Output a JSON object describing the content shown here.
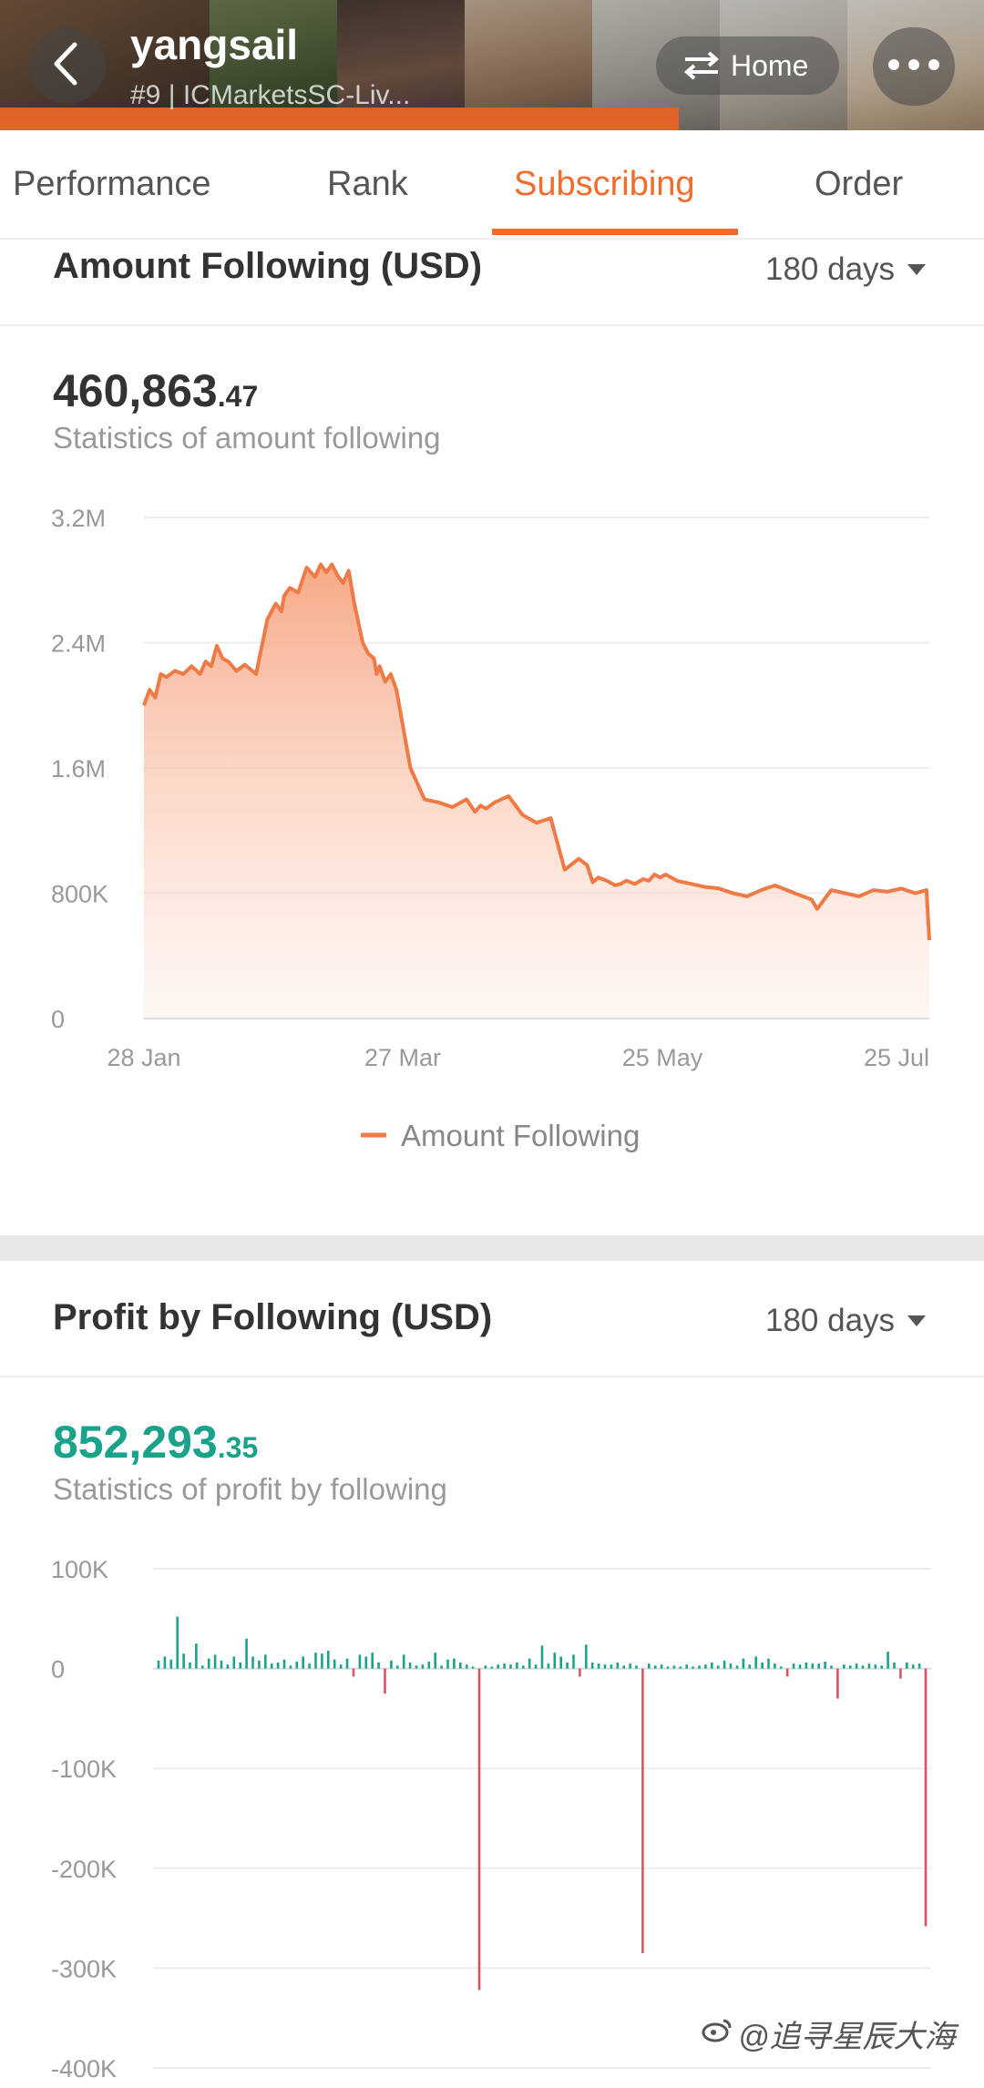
{
  "header": {
    "trader_name": "yangsail",
    "subtitle": "#9 | ICMarketsSC-Liv...",
    "home_label": "Home"
  },
  "tabs": [
    {
      "label": "Performance"
    },
    {
      "label": "Rank"
    },
    {
      "label": "Subscribing",
      "active": true
    },
    {
      "label": "Order"
    }
  ],
  "amount_section": {
    "title": "Amount Following (USD)",
    "period": "180 days",
    "value_int": "460,863",
    "value_dec": ".47",
    "stat_label": "Statistics of amount following",
    "legend": "Amount Following"
  },
  "profit_section": {
    "title": "Profit by Following (USD)",
    "period": "180 days",
    "value_int": "852,293",
    "value_dec": ".35",
    "stat_label": "Statistics of profit by following"
  },
  "watermark": "@追寻星辰大海",
  "colors": {
    "accent": "#f26b2a",
    "line": "#ef7a45",
    "positive": "#1aa38a",
    "negative": "#d9545f"
  },
  "chart_data": [
    {
      "type": "area",
      "series_name": "Amount Following",
      "y_ticks": [
        "3.2M",
        "2.4M",
        "1.6M",
        "800K",
        "0"
      ],
      "x_ticks": [
        "28 Jan",
        "27 Mar",
        "25 May",
        "25 Jul"
      ],
      "ylim": [
        0,
        3200000
      ],
      "x_days": [
        0,
        2,
        4,
        6,
        8,
        11,
        14,
        17,
        20,
        22,
        24,
        26,
        28,
        30,
        33,
        36,
        40,
        44,
        47,
        49,
        50,
        52,
        55,
        58,
        61,
        63,
        65,
        67,
        69,
        71,
        73,
        75,
        78,
        80,
        82,
        83,
        84,
        86,
        88,
        90,
        95,
        100,
        105,
        110,
        115,
        118,
        120,
        122,
        125,
        130,
        135,
        140,
        145,
        150,
        155,
        158,
        160,
        162,
        165,
        168,
        170,
        172,
        175,
        178,
        180,
        182,
        184,
        186,
        190,
        195,
        200,
        205,
        210,
        215,
        220,
        225,
        232,
        238,
        240,
        245,
        250,
        255,
        260,
        265,
        270,
        275,
        279,
        280
      ],
      "values": [
        2000000,
        2100000,
        2050000,
        2200000,
        2180000,
        2220000,
        2200000,
        2250000,
        2200000,
        2280000,
        2250000,
        2380000,
        2300000,
        2280000,
        2220000,
        2260000,
        2200000,
        2550000,
        2650000,
        2600000,
        2700000,
        2750000,
        2720000,
        2880000,
        2820000,
        2900000,
        2850000,
        2900000,
        2830000,
        2780000,
        2860000,
        2650000,
        2400000,
        2330000,
        2300000,
        2200000,
        2250000,
        2150000,
        2200000,
        2100000,
        1600000,
        1400000,
        1380000,
        1350000,
        1400000,
        1320000,
        1360000,
        1340000,
        1380000,
        1420000,
        1300000,
        1250000,
        1280000,
        950000,
        1020000,
        980000,
        870000,
        900000,
        880000,
        850000,
        860000,
        880000,
        860000,
        890000,
        880000,
        920000,
        900000,
        920000,
        880000,
        860000,
        840000,
        830000,
        800000,
        780000,
        820000,
        850000,
        800000,
        760000,
        700000,
        820000,
        800000,
        780000,
        820000,
        810000,
        830000,
        800000,
        820000,
        500000
      ]
    },
    {
      "type": "bar",
      "y_ticks": [
        "100K",
        "0",
        "-100K",
        "-200K",
        "-300K",
        "-400K"
      ],
      "ylim": [
        -400000,
        100000
      ],
      "values": [
        8000,
        12000,
        9000,
        52000,
        15000,
        6000,
        25000,
        3000,
        10000,
        14000,
        8000,
        4000,
        12000,
        6000,
        30000,
        12000,
        8000,
        14000,
        5000,
        6000,
        9000,
        3000,
        7000,
        12000,
        5000,
        16000,
        15000,
        18000,
        9000,
        4000,
        10000,
        -8000,
        14000,
        12000,
        16000,
        6000,
        -25000,
        8000,
        3000,
        14000,
        6000,
        3000,
        4000,
        7000,
        16000,
        3000,
        9000,
        10000,
        6000,
        4000,
        2000,
        -322000,
        3000,
        2000,
        4000,
        5000,
        4000,
        6000,
        3000,
        10000,
        4000,
        23000,
        5000,
        16000,
        12000,
        6000,
        14000,
        -8000,
        24000,
        6000,
        5000,
        4000,
        4000,
        6000,
        3000,
        5000,
        3000,
        -285000,
        5000,
        3000,
        4000,
        2000,
        3000,
        2000,
        4000,
        2000,
        3000,
        4000,
        6000,
        3000,
        8000,
        5000,
        3000,
        10000,
        4000,
        12000,
        6000,
        10000,
        5000,
        2000,
        -8000,
        5000,
        4000,
        6000,
        5000,
        5000,
        7000,
        3000,
        -30000,
        4000,
        3000,
        5000,
        3000,
        5000,
        4000,
        3000,
        17000,
        6000,
        -10000,
        6000,
        4000,
        5000,
        -258000
      ]
    }
  ]
}
